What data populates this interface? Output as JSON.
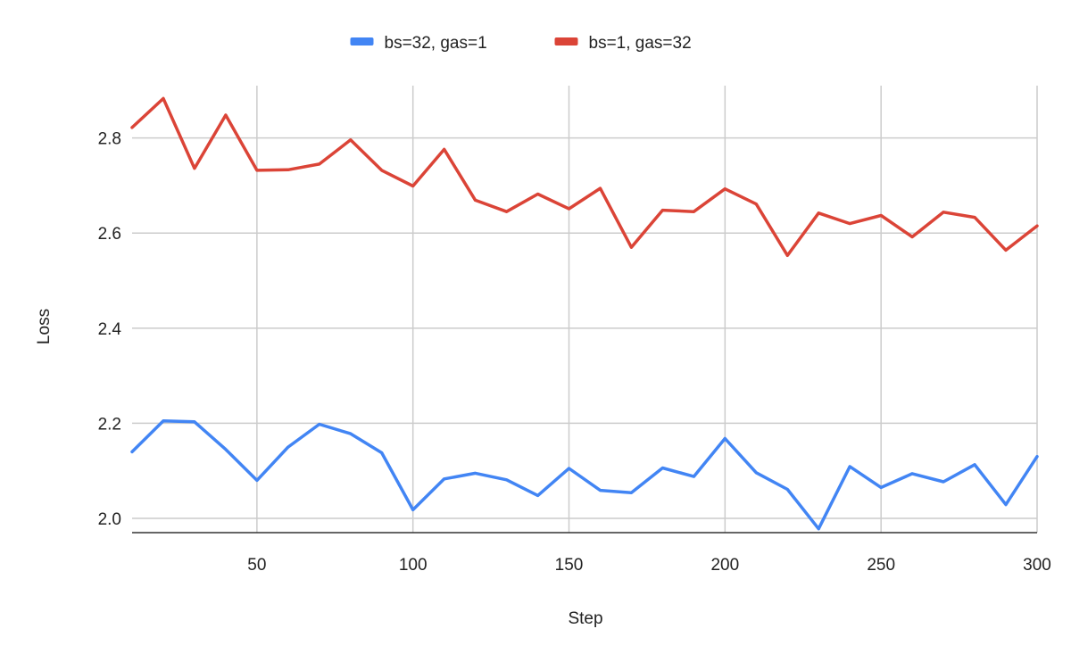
{
  "chart_data": {
    "type": "line",
    "title": "",
    "xlabel": "Step",
    "ylabel": "Loss",
    "xlim": [
      10,
      300
    ],
    "ylim": [
      1.97,
      2.91
    ],
    "x_ticks": [
      50,
      100,
      150,
      200,
      250,
      300
    ],
    "y_ticks": [
      2.0,
      2.2,
      2.4,
      2.6,
      2.8
    ],
    "grid": true,
    "legend_position": "top",
    "x": [
      10,
      20,
      30,
      40,
      50,
      60,
      70,
      80,
      90,
      100,
      110,
      120,
      130,
      140,
      150,
      160,
      170,
      180,
      190,
      200,
      210,
      220,
      230,
      240,
      250,
      260,
      270,
      280,
      290,
      300
    ],
    "series": [
      {
        "name": "bs=32, gas=1",
        "color": "#4285f4",
        "values": [
          2.14,
          2.205,
          2.203,
          2.145,
          2.08,
          2.15,
          2.198,
          2.178,
          2.138,
          2.018,
          2.083,
          2.095,
          2.081,
          2.048,
          2.105,
          2.059,
          2.054,
          2.106,
          2.088,
          2.168,
          2.096,
          2.061,
          1.978,
          2.109,
          2.065,
          2.094,
          2.077,
          2.113,
          2.029,
          2.13
        ]
      },
      {
        "name": "bs=1, gas=32",
        "color": "#db4437",
        "values": [
          2.822,
          2.883,
          2.736,
          2.848,
          2.732,
          2.733,
          2.745,
          2.796,
          2.732,
          2.699,
          2.776,
          2.669,
          2.645,
          2.682,
          2.651,
          2.694,
          2.57,
          2.648,
          2.645,
          2.693,
          2.661,
          2.553,
          2.642,
          2.62,
          2.637,
          2.592,
          2.644,
          2.633,
          2.564,
          2.615
        ]
      }
    ]
  }
}
